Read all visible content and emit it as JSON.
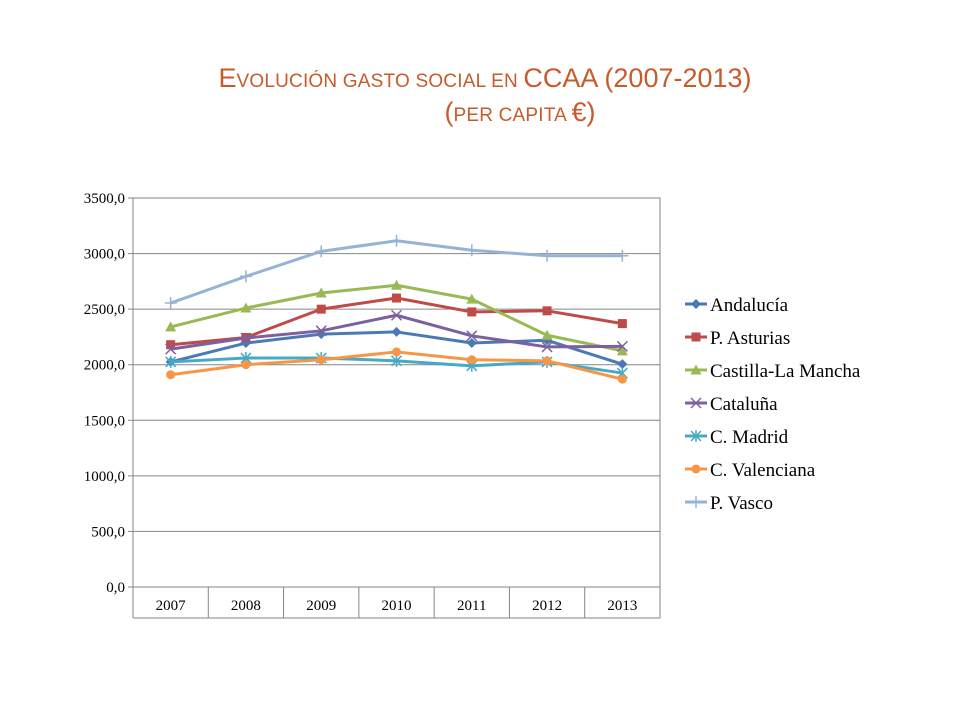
{
  "title": {
    "line1_big": "E",
    "line1_small": "VOLUCIÓN GASTO SOCIAL EN ",
    "line1_rest": "CCAA (2007-2013)",
    "line2_open": "(",
    "line2_small": "PER CAPITA ",
    "line2_rest": "€)"
  },
  "chart_data": {
    "type": "line",
    "categories": [
      "2007",
      "2008",
      "2009",
      "2010",
      "2011",
      "2012",
      "2013"
    ],
    "y_ticks": [
      "0,0",
      "500,0",
      "1000,0",
      "1500,0",
      "2000,0",
      "2500,0",
      "3000,0",
      "3500,0"
    ],
    "ylim": [
      0,
      3500
    ],
    "grid": "horizontal",
    "legend_position": "right",
    "series": [
      {
        "name": "Andalucía",
        "color": "#4a7ab5",
        "marker": "diamond",
        "values": [
          2025,
          2195,
          2275,
          2295,
          2195,
          2220,
          2005
        ]
      },
      {
        "name": "P. Asturias",
        "color": "#be4b48",
        "marker": "square",
        "values": [
          2180,
          2245,
          2500,
          2600,
          2475,
          2485,
          2370
        ]
      },
      {
        "name": "Castilla-La Mancha",
        "color": "#98b954",
        "marker": "triangle",
        "values": [
          2340,
          2510,
          2645,
          2715,
          2590,
          2265,
          2125
        ]
      },
      {
        "name": "Cataluña",
        "color": "#7d60a0",
        "marker": "x",
        "values": [
          2140,
          2240,
          2305,
          2445,
          2260,
          2160,
          2165
        ]
      },
      {
        "name": "C. Madrid",
        "color": "#46aac5",
        "marker": "star",
        "values": [
          2025,
          2060,
          2060,
          2035,
          1990,
          2025,
          1925
        ]
      },
      {
        "name": "C. Valenciana",
        "color": "#f79646",
        "marker": "circle",
        "values": [
          1910,
          2000,
          2045,
          2115,
          2045,
          2035,
          1870
        ]
      },
      {
        "name": "P. Vasco",
        "color": "#95b3d7",
        "marker": "plus",
        "values": [
          2555,
          2795,
          3020,
          3115,
          3030,
          2980,
          2980
        ]
      }
    ]
  }
}
